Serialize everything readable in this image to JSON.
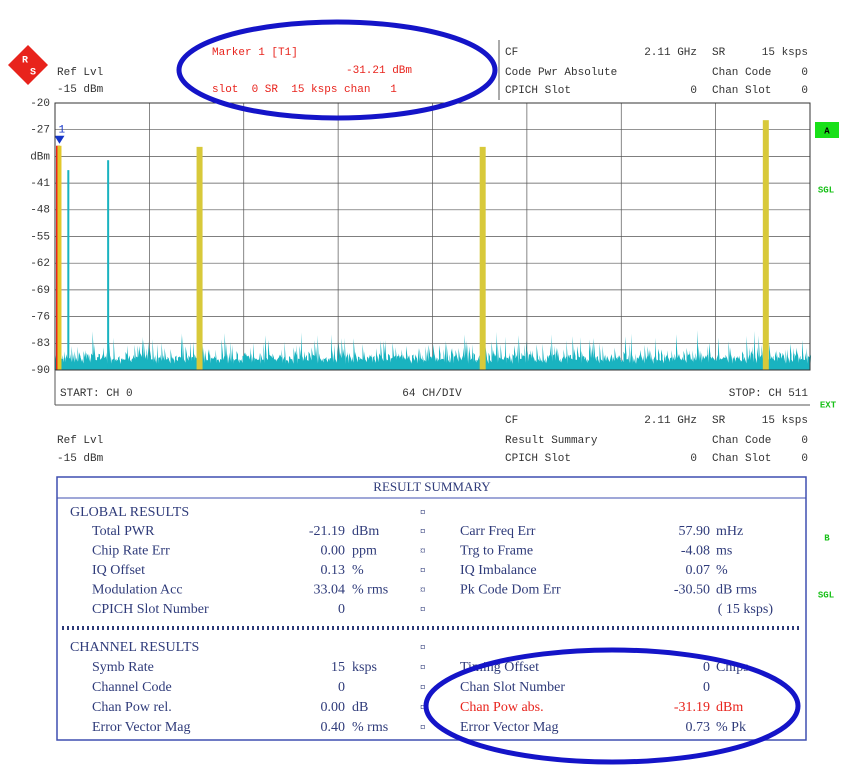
{
  "header": {
    "ref_lvl": "Ref Lvl",
    "ref_value": "-15 dBm",
    "marker": {
      "title": "Marker 1 [T1]",
      "value": "-31.21 dBm",
      "info": "slot  0 SR  15 ksps chan   1"
    },
    "cf": "CF",
    "cf_value": "2.11 GHz",
    "sr": "SR",
    "sr_value": "15 ksps",
    "mode": "Code Pwr Absolute",
    "chan_code": "Chan Code",
    "chan_code_value": "0",
    "cpich_slot": "CPICH Slot",
    "cpich_slot_value": "0",
    "chan_slot": "Chan Slot",
    "chan_slot_value": "0"
  },
  "side": {
    "a": "A",
    "sgl_a": "SGL",
    "ext": "EXT",
    "b": "B",
    "sgl_b": "SGL"
  },
  "chart_data": {
    "type": "bar",
    "x": [
      0,
      1,
      7,
      34,
      96,
      288,
      480
    ],
    "values": [
      -31.2,
      -31.21,
      -37.6,
      -35,
      -31.5,
      -31.5,
      -24.5
    ],
    "colors": [
      "#e8231c",
      "#e2c82a",
      "#19b3c0",
      "#19b3c0",
      "#d8c93a",
      "#d8c93a",
      "#d8c93a"
    ],
    "xlim": [
      0,
      512
    ],
    "ylim": [
      -90,
      -20
    ],
    "xticks": [
      0,
      64,
      128,
      192,
      256,
      320,
      384,
      448,
      512
    ],
    "yticks": [
      -20,
      -27,
      {
        "value": -34,
        "label": "dBm"
      },
      -41,
      -48,
      -55,
      -62,
      -69,
      -76,
      -83,
      -90
    ],
    "grid": true,
    "marker_label": "1",
    "start": "START: CH 0",
    "div": "64 CH/DIV",
    "stop": "STOP: CH 511"
  },
  "header2": {
    "ref_lvl": "Ref Lvl",
    "ref_value": "-15 dBm",
    "cf": "CF",
    "cf_value": "2.11 GHz",
    "sr": "SR",
    "sr_value": "15 ksps",
    "mode": "Result Summary",
    "chan_code": "Chan Code",
    "chan_code_value": "0",
    "cpich_slot": "CPICH Slot",
    "cpich_slot_value": "0",
    "chan_slot": "Chan Slot",
    "chan_slot_value": "0"
  },
  "table": {
    "title": "RESULT SUMMARY",
    "separator": "¤",
    "global_title": "GLOBAL RESULTS",
    "global": [
      {
        "left": {
          "label": "Total PWR",
          "value": "-21.19",
          "unit": "dBm"
        },
        "right": {
          "label": "Carr Freq Err",
          "value": "57.90",
          "unit": "mHz"
        }
      },
      {
        "left": {
          "label": "Chip Rate Err",
          "value": "0.00",
          "unit": "ppm"
        },
        "right": {
          "label": "Trg to Frame",
          "value": "-4.08",
          "unit": "ms"
        }
      },
      {
        "left": {
          "label": "IQ Offset",
          "value": "0.13",
          "unit": "%"
        },
        "right": {
          "label": "IQ Imbalance",
          "value": "0.07",
          "unit": "%"
        }
      },
      {
        "left": {
          "label": "Modulation Acc",
          "value": "33.04",
          "unit": "% rms"
        },
        "right": {
          "label": "Pk Code Dom Err",
          "value": "-30.50",
          "unit": "dB rms"
        }
      },
      {
        "left": {
          "label": "CPICH Slot Number",
          "value": "0"
        },
        "right": {
          "value": "( 15 ksps)"
        }
      }
    ],
    "channel_title": "CHANNEL RESULTS",
    "channel": [
      {
        "left": {
          "label": "Symb Rate",
          "value": "15",
          "unit": "ksps"
        },
        "right": {
          "label": "Timing Offset",
          "value": "0",
          "unit": "Chips"
        }
      },
      {
        "left": {
          "label": "Channel Code",
          "value": "0"
        },
        "right": {
          "label": "Chan Slot Number",
          "value": "0"
        }
      },
      {
        "left": {
          "label": "Chan Pow rel.",
          "value": "0.00",
          "unit": "dB"
        },
        "right": {
          "label": "Chan Pow abs.",
          "value": "-31.19",
          "unit": "dBm"
        }
      },
      {
        "left": {
          "label": "Error Vector Mag",
          "value": "0.40",
          "unit": "% rms"
        },
        "right": {
          "label": "Error Vector Mag",
          "value": "0.73",
          "unit": "% Pk"
        }
      }
    ]
  }
}
